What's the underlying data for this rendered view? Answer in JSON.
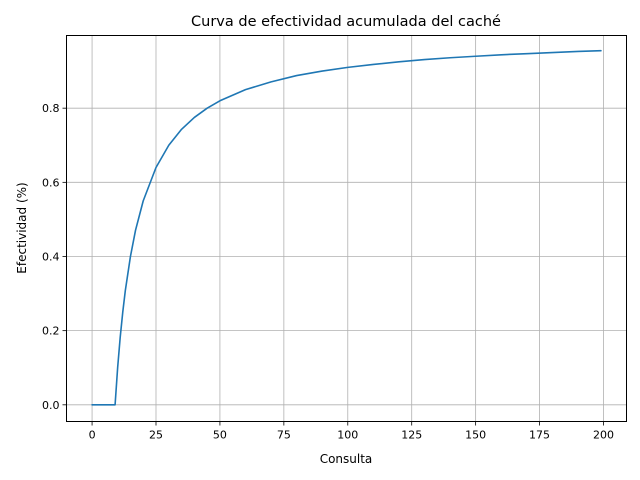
{
  "chart_data": {
    "type": "line",
    "title": "Curva de efectividad acumulada del caché",
    "xlabel": "Consulta",
    "ylabel": "Efectividad (%)",
    "xlim": [
      -10,
      209
    ],
    "ylim": [
      -0.045,
      0.996
    ],
    "xticks": [
      0,
      25,
      50,
      75,
      100,
      125,
      150,
      175,
      200
    ],
    "yticks": [
      0.0,
      0.2,
      0.4,
      0.6,
      0.8
    ],
    "ytick_labels": [
      "0.0",
      "0.2",
      "0.4",
      "0.6",
      "0.8"
    ],
    "grid": true,
    "line_color": "#1f77b4",
    "series": [
      {
        "x": [
          0,
          9,
          10,
          11,
          12,
          13,
          15,
          17,
          20,
          25,
          30,
          35,
          40,
          45,
          50,
          60,
          70,
          80,
          90,
          100,
          110,
          120,
          130,
          140,
          150,
          160,
          170,
          180,
          190,
          199
        ],
        "y": [
          0.0,
          0.0,
          0.1,
          0.182,
          0.25,
          0.308,
          0.4,
          0.471,
          0.55,
          0.64,
          0.7,
          0.743,
          0.775,
          0.8,
          0.82,
          0.85,
          0.871,
          0.888,
          0.9,
          0.91,
          0.918,
          0.925,
          0.931,
          0.936,
          0.94,
          0.944,
          0.947,
          0.95,
          0.953,
          0.955
        ]
      }
    ]
  }
}
